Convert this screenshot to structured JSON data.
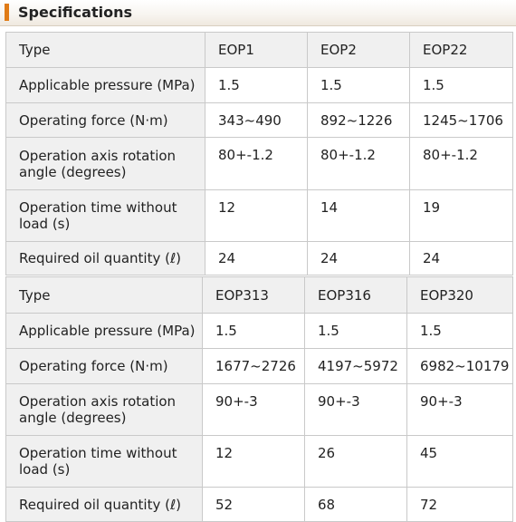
{
  "section_title": "Specifications",
  "tables": [
    {
      "models": [
        "EOP1",
        "EOP2",
        "EOP22"
      ],
      "rows": [
        {
          "label": "Applicable pressure (MPa)",
          "values": [
            "1.5",
            "1.5",
            "1.5"
          ]
        },
        {
          "label": "Operating force (N·m)",
          "values": [
            "343~490",
            "892~1226",
            "1245~1706"
          ]
        },
        {
          "label": "Operation axis rotation angle (degrees)",
          "values": [
            "80+-1.2",
            "80+-1.2",
            "80+-1.2"
          ]
        },
        {
          "label": "Operation time without load (s)",
          "values": [
            "12",
            "14",
            "19"
          ]
        },
        {
          "label": "Required oil quantity (ℓ)",
          "values": [
            "24",
            "24",
            "24"
          ]
        }
      ]
    },
    {
      "models": [
        "EOP313",
        "EOP316",
        "EOP320"
      ],
      "rows": [
        {
          "label": "Applicable pressure (MPa)",
          "values": [
            "1.5",
            "1.5",
            "1.5"
          ]
        },
        {
          "label": "Operating force (N·m)",
          "values": [
            "1677~2726",
            "4197~5972",
            "6982~10179"
          ]
        },
        {
          "label": "Operation axis rotation angle (degrees)",
          "values": [
            "90+-3",
            "90+-3",
            "90+-3"
          ]
        },
        {
          "label": "Operation time without load (s)",
          "values": [
            "12",
            "26",
            "45"
          ]
        },
        {
          "label": "Required oil quantity (ℓ)",
          "values": [
            "52",
            "68",
            "72"
          ]
        }
      ]
    }
  ],
  "type_label": "Type"
}
